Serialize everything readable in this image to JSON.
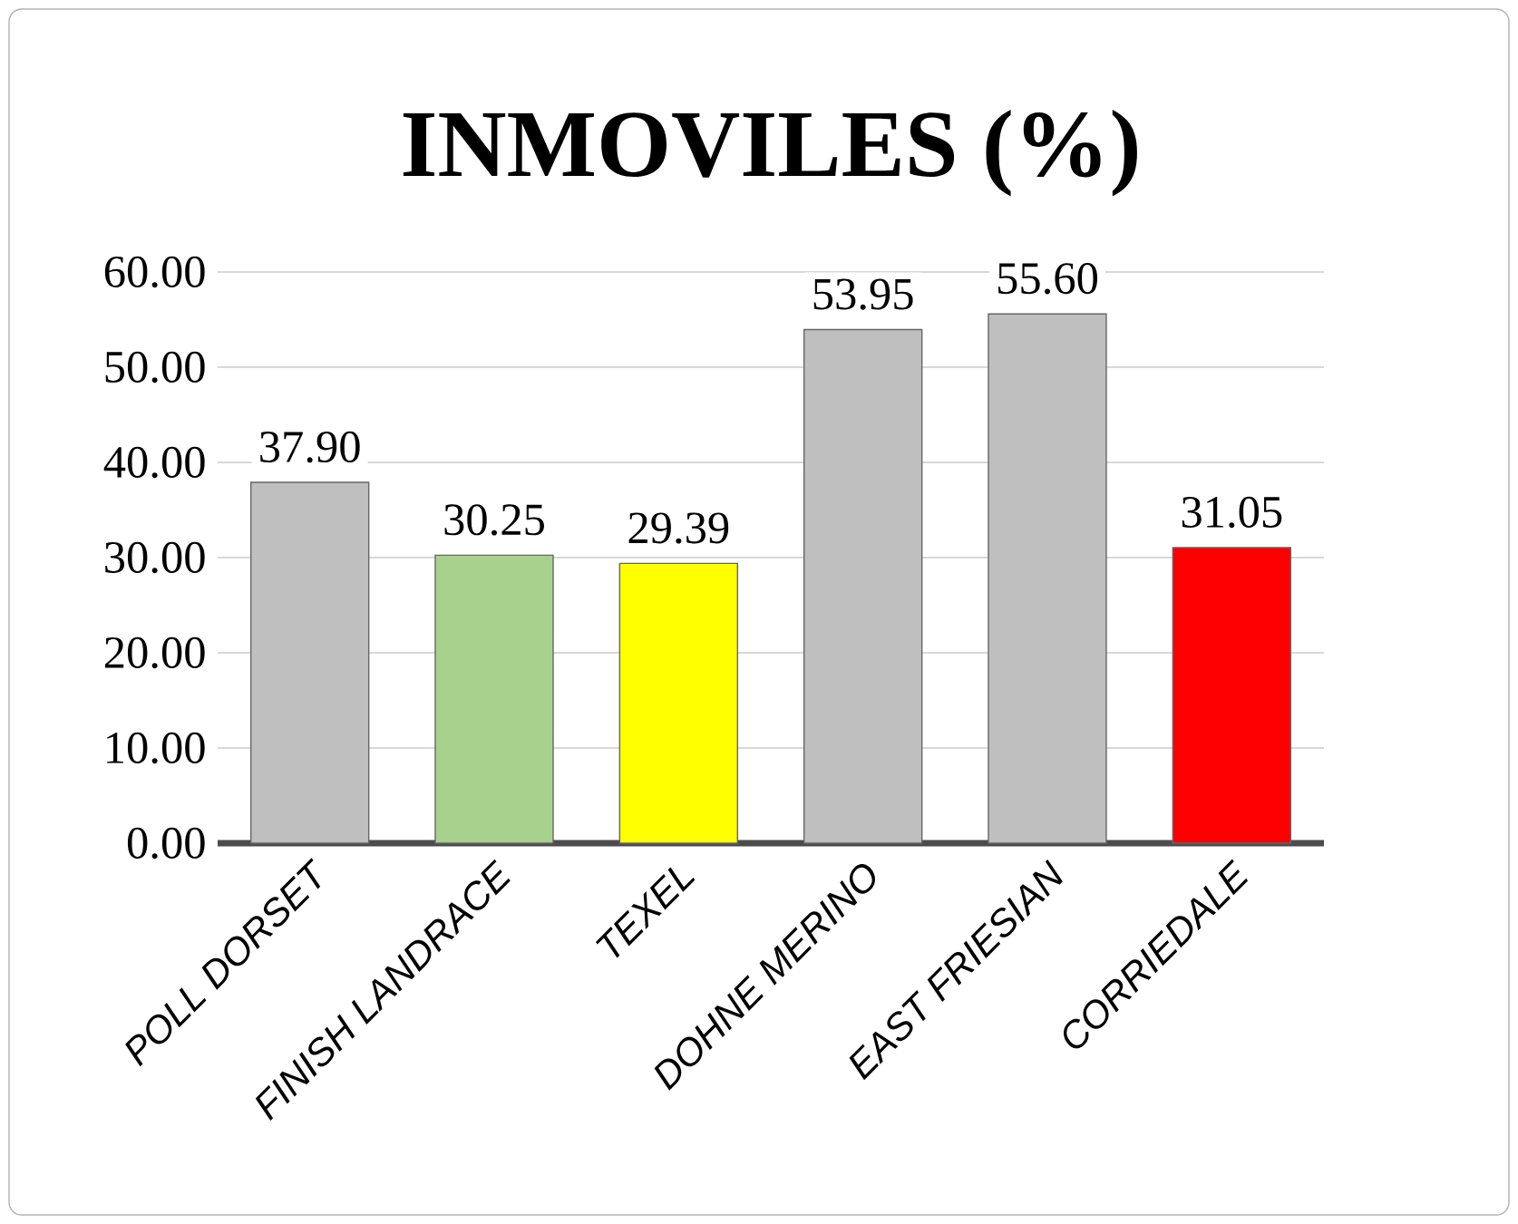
{
  "chart_data": {
    "type": "bar",
    "title": "INMOVILES (%)",
    "categories": [
      "POLL DORSET",
      "FINISH LANDRACE",
      "TEXEL",
      "DOHNE MERINO",
      "EAST FRIESIAN",
      "CORRIEDALE"
    ],
    "values": [
      37.9,
      30.25,
      29.39,
      53.95,
      55.6,
      31.05
    ],
    "colors": [
      "#bfbfbf",
      "#a9d18e",
      "#ffff00",
      "#bfbfbf",
      "#bfbfbf",
      "#ff0000"
    ],
    "ylim": [
      0,
      60
    ],
    "yticks": [
      {
        "value": 0,
        "label": "0.00"
      },
      {
        "value": 10,
        "label": "10.00"
      },
      {
        "value": 20,
        "label": "20.00"
      },
      {
        "value": 30,
        "label": "30.00"
      },
      {
        "value": 40,
        "label": "40.00"
      },
      {
        "value": 50,
        "label": "50.00"
      },
      {
        "value": 60,
        "label": "60.00"
      }
    ],
    "value_labels": [
      "37.90",
      "30.25",
      "29.39",
      "53.95",
      "55.60",
      "31.05"
    ],
    "grid": "y"
  }
}
